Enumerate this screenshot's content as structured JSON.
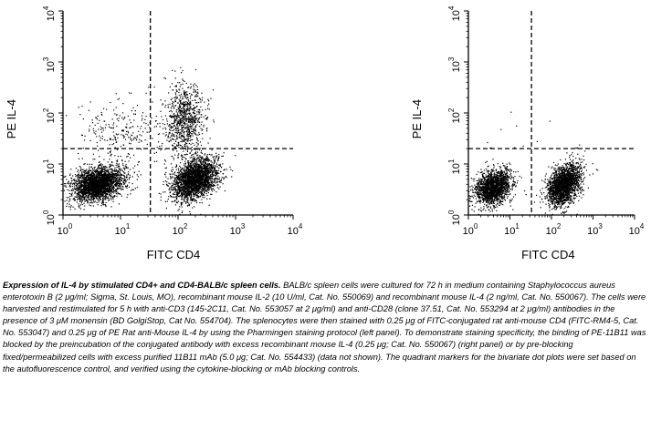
{
  "chart_data": [
    {
      "type": "scatter",
      "panel": "left",
      "xlabel": "FITC CD4",
      "ylabel": "PE IL-4",
      "xscale": "log",
      "yscale": "log",
      "xlim": [
        1,
        10000
      ],
      "ylim": [
        1,
        10000
      ],
      "xticks": [
        1,
        10,
        100,
        1000,
        10000
      ],
      "yticks": [
        1,
        10,
        100,
        1000,
        10000
      ],
      "tick_labels": [
        {
          "base": "10",
          "exp": "0"
        },
        {
          "base": "10",
          "exp": "1"
        },
        {
          "base": "10",
          "exp": "2"
        },
        {
          "base": "10",
          "exp": "3"
        },
        {
          "base": "10",
          "exp": "4"
        }
      ],
      "quadrant_markers": {
        "x": 33,
        "y": 20
      },
      "grid": false,
      "series": [
        {
          "cluster": "CD4- IL-4-",
          "center": [
            4,
            4
          ],
          "count": 2600
        },
        {
          "cluster": "CD4+ IL-4-",
          "center": [
            200,
            5
          ],
          "count": 2400
        },
        {
          "cluster": "CD4+ IL-4+",
          "center": [
            130,
            90
          ],
          "count": 900
        },
        {
          "cluster": "CD4- IL-4+",
          "center": [
            10,
            40
          ],
          "count": 250
        }
      ]
    },
    {
      "type": "scatter",
      "panel": "right",
      "xlabel": "FITC CD4",
      "ylabel": "PE IL-4",
      "xscale": "log",
      "yscale": "log",
      "xlim": [
        1,
        10000
      ],
      "ylim": [
        1,
        10000
      ],
      "xticks": [
        1,
        10,
        100,
        1000,
        10000
      ],
      "yticks": [
        1,
        10,
        100,
        1000,
        10000
      ],
      "tick_labels": [
        {
          "base": "10",
          "exp": "0"
        },
        {
          "base": "10",
          "exp": "1"
        },
        {
          "base": "10",
          "exp": "2"
        },
        {
          "base": "10",
          "exp": "3"
        },
        {
          "base": "10",
          "exp": "4"
        }
      ],
      "quadrant_markers": {
        "x": 33,
        "y": 20
      },
      "grid": false,
      "series": [
        {
          "cluster": "CD4- IL-4-",
          "center": [
            4,
            3.5
          ],
          "count": 1700
        },
        {
          "cluster": "CD4+ IL-4-",
          "center": [
            200,
            4
          ],
          "count": 2000
        },
        {
          "cluster": "CD4+ IL-4+",
          "center": [
            250,
            8
          ],
          "count": 15
        },
        {
          "cluster": "CD4- IL-4+",
          "center": [
            12,
            30
          ],
          "count": 10
        }
      ]
    }
  ],
  "caption": {
    "title": "Expression of IL-4 by stimulated CD4+ and CD4-BALB/c spleen cells.",
    "body": " BALB/c spleen cells were cultured for 72 h in medium containing Staphylococcus aureus enterotoxin B (2 μg/ml; Sigma, St. Louis, MO), recombinant mouse IL-2 (10 U/ml, Cat. No. 550069) and recombinant mouse IL-4 (2 ng/ml, Cat. No. 550067). The cells were harvested and restimulated for 5 h with anti-CD3 (145-2C11, Cat. No. 553057 at 2 μg/ml) and anti-CD28 (clone 37.51, Cat. No. 553294 at 2 μg/ml) antibodies in the presence of 3 μM monensin (BD GolgiStop, Cat No. 554704). The splenocytes were then stained with 0.25 μg of FITC-conjugated rat anti-mouse CD4 (FITC-RM4-5, Cat. No. 553047) and 0.25 μg of PE Rat anti-Mouse IL-4 by using the Pharmingen staining protocol (left panel). To demonstrate staining specificity, the binding of PE-11B11 was blocked by the preincubation of the conjugated antibody with excess recombinant mouse IL-4 (0.25 μg; Cat. No. 550067) (right panel) or by pre-blocking fixed/permeabilized cells with excess purified 11B11 mAb (5.0 μg; Cat. No. 554433) (data not shown). The quadrant markers for the bivariate dot plots were set based on the autofluorescence control, and verified using the cytokine-blocking or mAb blocking controls."
  }
}
